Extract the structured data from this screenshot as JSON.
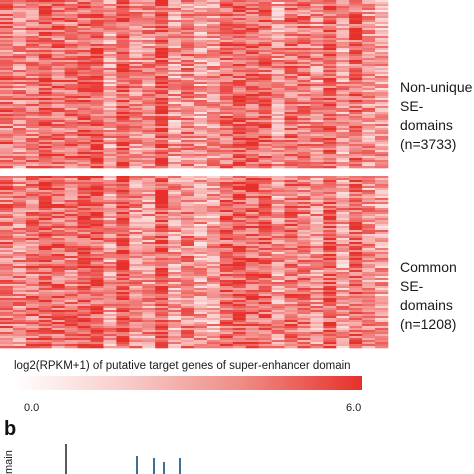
{
  "chart_data": [
    {
      "type": "heatmap",
      "title": "",
      "row_groups": [
        {
          "label": "Non-unique\nSE-domains\n(n=3733)",
          "n": 3733
        },
        {
          "label": "Common\nSE-domains\n(n=1208)",
          "n": 1208
        }
      ],
      "colorbar": {
        "title": "log2(RPKM+1) of putative target genes of super-enhancer domain",
        "min_label": "0.0",
        "max_label": "6.0",
        "range": [
          0.0,
          6.0
        ],
        "colors": [
          "#ffffff",
          "#e8302b"
        ]
      },
      "column_count": 30
    },
    {
      "type": "bar",
      "panel_label": "b",
      "ylabel": "main",
      "note": "partially visible"
    }
  ]
}
